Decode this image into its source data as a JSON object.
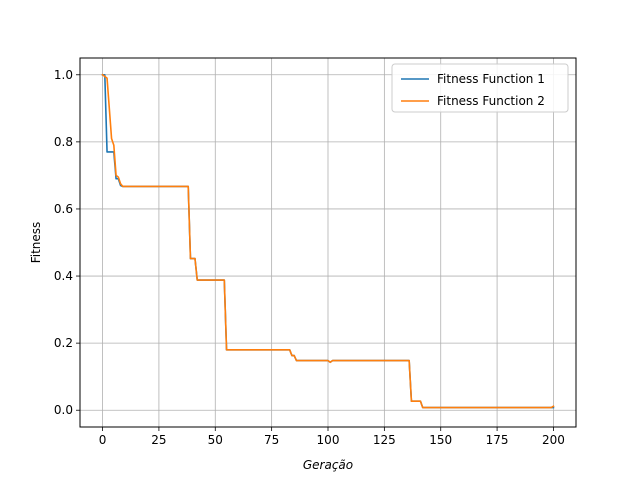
{
  "chart_data": {
    "type": "line",
    "title": "",
    "xlabel": "Geração",
    "ylabel": "Fitness",
    "xlim": [
      -10,
      210
    ],
    "ylim": [
      -0.05,
      1.05
    ],
    "xticks": [
      0,
      25,
      50,
      75,
      100,
      125,
      150,
      175,
      200
    ],
    "yticks": [
      0.0,
      0.2,
      0.4,
      0.6,
      0.8,
      1.0
    ],
    "xtick_labels": [
      "0",
      "25",
      "50",
      "75",
      "100",
      "125",
      "150",
      "175",
      "200"
    ],
    "ytick_labels": [
      "0.0",
      "0.2",
      "0.4",
      "0.6",
      "0.8",
      "1.0"
    ],
    "grid": true,
    "legend_position": "top-right",
    "series": [
      {
        "name": "Fitness Function 1",
        "color": "#1f77b4",
        "x": [
          0,
          1,
          2,
          3,
          4,
          5,
          6,
          7,
          8,
          9,
          37,
          38,
          39,
          41,
          42,
          54,
          55,
          83,
          84,
          85,
          86,
          100,
          101,
          102,
          136,
          137,
          141,
          142,
          199,
          200
        ],
        "y": [
          1.0,
          1.0,
          0.77,
          0.77,
          0.77,
          0.77,
          0.69,
          0.69,
          0.67,
          0.667,
          0.667,
          0.667,
          0.452,
          0.452,
          0.388,
          0.388,
          0.18,
          0.18,
          0.163,
          0.163,
          0.148,
          0.148,
          0.143,
          0.148,
          0.148,
          0.027,
          0.027,
          0.008,
          0.008,
          0.008
        ]
      },
      {
        "name": "Fitness Function 2",
        "color": "#ff7f0e",
        "x": [
          0,
          1,
          2,
          3,
          4,
          5,
          6,
          7,
          8,
          9,
          37,
          38,
          39,
          41,
          42,
          54,
          55,
          83,
          84,
          85,
          86,
          100,
          101,
          102,
          136,
          137,
          141,
          142,
          199,
          200
        ],
        "y": [
          1.0,
          0.995,
          0.99,
          0.9,
          0.81,
          0.79,
          0.7,
          0.695,
          0.675,
          0.667,
          0.667,
          0.667,
          0.452,
          0.452,
          0.388,
          0.388,
          0.18,
          0.18,
          0.163,
          0.163,
          0.148,
          0.148,
          0.143,
          0.148,
          0.148,
          0.027,
          0.027,
          0.008,
          0.008,
          0.012
        ]
      }
    ]
  }
}
